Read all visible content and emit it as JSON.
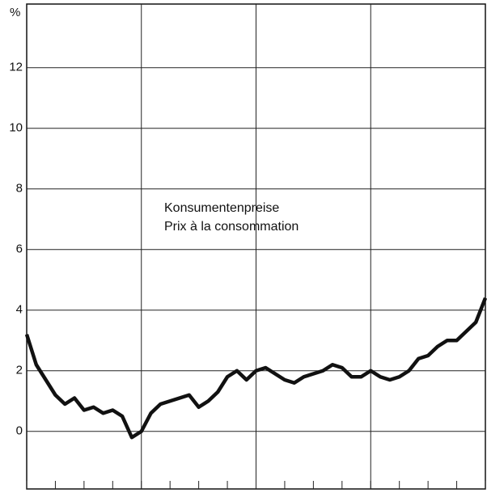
{
  "chart_data": {
    "type": "line",
    "y_unit": "%",
    "annotation": [
      "Konsumentenpreise",
      "Prix à la consommation"
    ],
    "x": [
      0,
      1,
      2,
      3,
      4,
      5,
      6,
      7,
      8,
      9,
      10,
      11,
      12,
      13,
      14,
      15,
      16,
      17,
      18,
      19,
      20,
      21,
      22,
      23,
      24,
      25,
      26,
      27,
      28,
      29,
      30,
      31,
      32,
      33,
      34,
      35,
      36,
      37,
      38,
      39,
      40,
      41,
      42,
      43,
      44,
      45,
      46,
      47,
      48
    ],
    "series": [
      {
        "color": "#111111",
        "values": [
          3.2,
          2.2,
          1.7,
          1.2,
          0.9,
          1.1,
          0.7,
          0.8,
          0.6,
          0.7,
          0.5,
          -0.2,
          0.0,
          0.6,
          0.9,
          1.0,
          1.1,
          1.2,
          0.8,
          1.0,
          1.3,
          1.8,
          2.0,
          1.7,
          2.0,
          2.1,
          1.9,
          1.7,
          1.6,
          1.8,
          1.9,
          2.0,
          2.2,
          2.1,
          1.8,
          1.8,
          2.0,
          1.8,
          1.7,
          1.8,
          2.0,
          2.4,
          2.5,
          2.8,
          3.0,
          3.0,
          3.3,
          3.6,
          4.4
        ]
      }
    ],
    "xlim": [
      0,
      48
    ],
    "xticks": [
      0,
      3,
      6,
      9,
      12,
      15,
      18,
      21,
      24,
      27,
      30,
      33,
      36,
      39,
      42,
      45,
      48
    ],
    "xgrid": [
      12,
      24,
      36
    ],
    "ylim": [
      -1.9,
      14.1
    ],
    "yticks": [
      0,
      2,
      4,
      6,
      8,
      10,
      12
    ],
    "grid": true
  }
}
